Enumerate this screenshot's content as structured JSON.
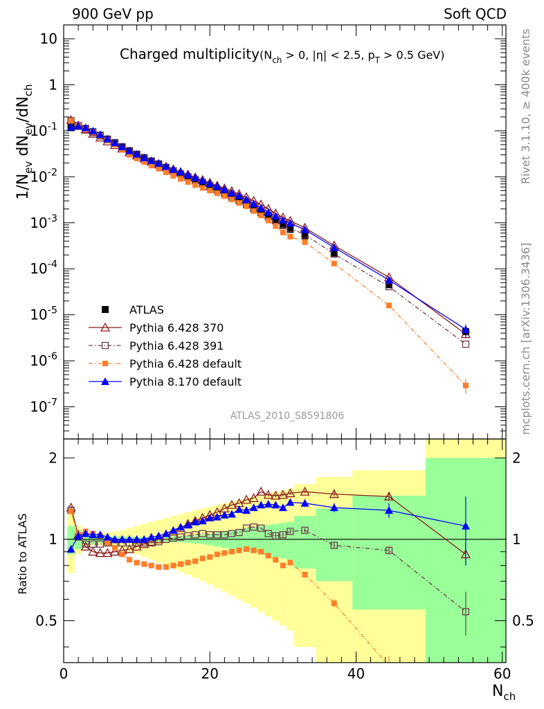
{
  "header": {
    "left": "900 GeV pp",
    "right": "Soft QCD"
  },
  "side_labels": {
    "rivet": "Rivet 3.1.10, ≥ 400k events",
    "mcplots": "mcplots.cern.ch [arXiv:1306.3436]"
  },
  "analysis_id": "ATLAS_2010_S8591806",
  "chart_data": [
    {
      "type": "scatter",
      "panel": "main",
      "title": "Charged multiplicity",
      "title_cuts": "(N_ch > 0, |η| < 2.5, p_T > 0.5 GeV)",
      "ylabel": "1/N_ev dN_ev/dN_ch",
      "xlabel": "N_ch",
      "xlim": [
        0,
        60.5
      ],
      "ylim": [
        2e-08,
        20
      ],
      "yscale": "log",
      "x_ticks": [
        0,
        20,
        40,
        60
      ],
      "y_ticks": [
        {
          "value": 1e-07,
          "label": "10^-7"
        },
        {
          "value": 1e-06,
          "label": "10^-6"
        },
        {
          "value": 1e-05,
          "label": "10^-5"
        },
        {
          "value": 0.0001,
          "label": "10^-4"
        },
        {
          "value": 0.001,
          "label": "10^-3"
        },
        {
          "value": 0.01,
          "label": "10^-2"
        },
        {
          "value": 0.1,
          "label": "10^-1"
        },
        {
          "value": 1,
          "label": "1"
        },
        {
          "value": 10,
          "label": "10"
        }
      ],
      "legend_placement": "bottom-left",
      "series": [
        {
          "name": "ATLAS",
          "color": "#000000",
          "marker": "square-filled",
          "line": "none",
          "x": [
            1,
            2,
            3,
            4,
            5,
            6,
            7,
            8,
            9,
            10,
            11,
            12,
            13,
            14,
            15,
            16,
            17,
            18,
            19,
            20,
            21,
            22,
            23,
            24,
            25,
            26,
            27,
            28,
            29,
            30,
            31,
            33,
            37,
            44.5,
            55
          ],
          "y": [
            0.13,
            0.125,
            0.112,
            0.095,
            0.08,
            0.066,
            0.055,
            0.045,
            0.037,
            0.031,
            0.026,
            0.022,
            0.019,
            0.016,
            0.0135,
            0.0115,
            0.0098,
            0.0083,
            0.0071,
            0.006,
            0.0051,
            0.0043,
            0.0036,
            0.003,
            0.0025,
            0.002,
            0.00165,
            0.00135,
            0.0011,
            0.00088,
            0.00072,
            0.00052,
            0.00022,
            4.5e-05,
            4.3e-06
          ]
        },
        {
          "name": "Pythia 6.428 370",
          "color": "#8b1a1a",
          "marker": "triangle-open",
          "line": "solid",
          "x": [
            1,
            2,
            3,
            4,
            5,
            6,
            7,
            8,
            9,
            10,
            11,
            12,
            13,
            14,
            15,
            16,
            17,
            18,
            19,
            20,
            21,
            22,
            23,
            24,
            25,
            26,
            27,
            28,
            29,
            30,
            31,
            33,
            37,
            44.5,
            55
          ],
          "y": [
            0.17,
            0.13,
            0.106,
            0.086,
            0.071,
            0.059,
            0.049,
            0.041,
            0.034,
            0.029,
            0.025,
            0.0215,
            0.019,
            0.0165,
            0.0145,
            0.0127,
            0.0112,
            0.0097,
            0.0085,
            0.0074,
            0.0064,
            0.0056,
            0.0049,
            0.0042,
            0.0036,
            0.003,
            0.0025,
            0.002,
            0.0016,
            0.0013,
            0.0011,
            0.00078,
            0.00032,
            6.5e-05,
            3.8e-06
          ]
        },
        {
          "name": "Pythia 6.428 391",
          "color": "#6b3a4a",
          "marker": "square-open",
          "line": "dashdot",
          "x": [
            1,
            2,
            3,
            4,
            5,
            6,
            7,
            8,
            9,
            10,
            11,
            12,
            13,
            14,
            15,
            16,
            17,
            18,
            19,
            20,
            21,
            22,
            23,
            24,
            25,
            26,
            27,
            28,
            29,
            30,
            31,
            33,
            37,
            44.5,
            55
          ],
          "y": [
            0.165,
            0.13,
            0.108,
            0.091,
            0.077,
            0.064,
            0.053,
            0.044,
            0.036,
            0.03,
            0.025,
            0.021,
            0.018,
            0.0155,
            0.0133,
            0.0115,
            0.01,
            0.0087,
            0.0075,
            0.0064,
            0.0054,
            0.0046,
            0.0039,
            0.0033,
            0.0028,
            0.0023,
            0.0018,
            0.00145,
            0.00115,
            0.00092,
            0.00076,
            0.00055,
            0.00021,
            4.1e-05,
            2.3e-06
          ]
        },
        {
          "name": "Pythia 6.428 default",
          "color": "#ff7f2a",
          "marker": "square-filled-small",
          "line": "dashdot",
          "x": [
            1,
            2,
            3,
            4,
            5,
            6,
            7,
            8,
            9,
            10,
            11,
            12,
            13,
            14,
            15,
            16,
            17,
            18,
            19,
            20,
            21,
            22,
            23,
            24,
            25,
            26,
            27,
            28,
            29,
            30,
            31,
            33,
            37,
            44.5,
            55
          ],
          "y": [
            0.165,
            0.13,
            0.107,
            0.092,
            0.078,
            0.062,
            0.05,
            0.039,
            0.03,
            0.025,
            0.021,
            0.0175,
            0.015,
            0.0125,
            0.0105,
            0.009,
            0.0077,
            0.0066,
            0.0057,
            0.005,
            0.0044,
            0.0038,
            0.0032,
            0.0027,
            0.0023,
            0.0018,
            0.00145,
            0.00112,
            0.00085,
            0.00062,
            0.0005,
            0.00038,
            0.00013,
            1.6e-05,
            2.9e-07
          ]
        },
        {
          "name": "Pythia 8.170 default",
          "color": "#0000ff",
          "marker": "triangle-filled",
          "line": "solid",
          "x": [
            1,
            2,
            3,
            4,
            5,
            6,
            7,
            8,
            9,
            10,
            11,
            12,
            13,
            14,
            15,
            16,
            17,
            18,
            19,
            20,
            21,
            22,
            23,
            24,
            25,
            26,
            27,
            28,
            29,
            30,
            31,
            33,
            37,
            44.5,
            55
          ],
          "y": [
            0.12,
            0.128,
            0.117,
            0.099,
            0.083,
            0.067,
            0.055,
            0.045,
            0.037,
            0.031,
            0.026,
            0.0225,
            0.0196,
            0.0168,
            0.0146,
            0.0128,
            0.0111,
            0.0097,
            0.0083,
            0.0072,
            0.0062,
            0.0053,
            0.0045,
            0.0039,
            0.0032,
            0.0026,
            0.0021,
            0.0017,
            0.0014,
            0.00115,
            0.00098,
            0.00071,
            0.00029,
            5.7e-05,
            4.8e-06
          ]
        }
      ]
    },
    {
      "type": "line",
      "panel": "ratio",
      "ylabel": "Ratio to ATLAS",
      "xlabel": "N_ch",
      "xlim": [
        0,
        60.5
      ],
      "ylim": [
        0.35,
        2.35
      ],
      "yscale": "log",
      "y_ticks": [
        {
          "value": 0.5,
          "label": "0.5"
        },
        {
          "value": 1,
          "label": "1"
        },
        {
          "value": 2,
          "label": "2"
        }
      ],
      "x_ticks": [
        0,
        20,
        40,
        60
      ],
      "uncertainty_bands": {
        "bin_edges": [
          0.5,
          1.5,
          2.5,
          3.5,
          4.5,
          5.5,
          6.5,
          7.5,
          8.5,
          9.5,
          10.5,
          11.5,
          12.5,
          13.5,
          14.5,
          15.5,
          16.5,
          17.5,
          18.5,
          19.5,
          20.5,
          21.5,
          22.5,
          23.5,
          24.5,
          25.5,
          26.5,
          27.5,
          28.5,
          29.5,
          30.5,
          31.5,
          34.5,
          39.5,
          49.5,
          60.5
        ],
        "green_half_width": [
          0.12,
          0.08,
          0.04,
          0.035,
          0.03,
          0.028,
          0.026,
          0.024,
          0.022,
          0.02,
          0.02,
          0.02,
          0.02,
          0.022,
          0.024,
          0.026,
          0.03,
          0.034,
          0.04,
          0.05,
          0.06,
          0.07,
          0.08,
          0.09,
          0.1,
          0.11,
          0.12,
          0.13,
          0.14,
          0.15,
          0.16,
          0.22,
          0.3,
          0.45,
          1.0
        ],
        "yellow_half_width": [
          0.25,
          0.12,
          0.06,
          0.05,
          0.05,
          0.06,
          0.07,
          0.08,
          0.1,
          0.12,
          0.14,
          0.16,
          0.18,
          0.2,
          0.22,
          0.24,
          0.26,
          0.28,
          0.3,
          0.32,
          0.34,
          0.36,
          0.38,
          0.4,
          0.42,
          0.44,
          0.46,
          0.48,
          0.5,
          0.52,
          0.54,
          0.6,
          0.7,
          0.8,
          1.4
        ],
        "green_color": "#99ff99",
        "yellow_color": "#ffff99"
      },
      "series": [
        {
          "name": "Pythia 6.428 370",
          "color": "#8b1a1a",
          "marker": "triangle-open",
          "line": "solid",
          "x": [
            1,
            2,
            3,
            4,
            5,
            6,
            7,
            8,
            9,
            10,
            11,
            12,
            13,
            14,
            15,
            16,
            17,
            18,
            19,
            20,
            21,
            22,
            23,
            24,
            25,
            26,
            27,
            28,
            29,
            30,
            31,
            33,
            37,
            44.5,
            55
          ],
          "y": [
            1.31,
            1.04,
            0.94,
            0.9,
            0.89,
            0.89,
            0.9,
            0.91,
            0.92,
            0.94,
            0.96,
            0.98,
            1.0,
            1.03,
            1.07,
            1.1,
            1.14,
            1.17,
            1.2,
            1.23,
            1.26,
            1.3,
            1.34,
            1.36,
            1.4,
            1.42,
            1.5,
            1.46,
            1.45,
            1.46,
            1.48,
            1.5,
            1.47,
            1.44,
            0.88
          ],
          "err": [
            0.02,
            0.02,
            0.01,
            0.01,
            0.01,
            0.01,
            0.01,
            0.01,
            0.01,
            0.01,
            0.01,
            0.01,
            0.01,
            0.01,
            0.01,
            0.01,
            0.01,
            0.01,
            0.01,
            0.01,
            0.01,
            0.01,
            0.01,
            0.01,
            0.01,
            0.01,
            0.01,
            0.02,
            0.02,
            0.02,
            0.02,
            0.02,
            0.03,
            0.04,
            0.07
          ]
        },
        {
          "name": "Pythia 6.428 391",
          "color": "#6b3a4a",
          "marker": "square-open",
          "line": "dashdot",
          "x": [
            1,
            2,
            3,
            4,
            5,
            6,
            7,
            8,
            9,
            10,
            11,
            12,
            13,
            14,
            15,
            16,
            17,
            18,
            19,
            20,
            21,
            22,
            23,
            24,
            25,
            26,
            27,
            28,
            29,
            30,
            31,
            33,
            37,
            44.5,
            55
          ],
          "y": [
            1.28,
            1.02,
            0.96,
            0.96,
            0.96,
            0.97,
            0.97,
            0.97,
            0.97,
            0.97,
            0.97,
            0.97,
            0.98,
            1.0,
            1.01,
            1.02,
            1.03,
            1.04,
            1.05,
            1.04,
            1.04,
            1.04,
            1.05,
            1.06,
            1.1,
            1.11,
            1.1,
            1.05,
            1.03,
            1.04,
            1.07,
            1.08,
            0.95,
            0.91,
            0.54
          ],
          "err": [
            0.02,
            0.02,
            0.01,
            0.01,
            0.01,
            0.01,
            0.01,
            0.01,
            0.01,
            0.01,
            0.01,
            0.01,
            0.01,
            0.01,
            0.01,
            0.01,
            0.01,
            0.01,
            0.01,
            0.01,
            0.01,
            0.01,
            0.01,
            0.01,
            0.01,
            0.01,
            0.01,
            0.01,
            0.02,
            0.02,
            0.02,
            0.02,
            0.02,
            0.03,
            0.1
          ]
        },
        {
          "name": "Pythia 6.428 default",
          "color": "#ff7f2a",
          "marker": "square-filled-small",
          "line": "dashdot",
          "x": [
            1,
            2,
            3,
            4,
            5,
            6,
            7,
            8,
            9,
            10,
            11,
            12,
            13,
            14,
            15,
            16,
            17,
            18,
            19,
            20,
            21,
            22,
            23,
            24,
            25,
            26,
            27,
            28,
            29,
            30,
            31,
            33,
            37,
            44.5
          ],
          "y": [
            1.27,
            1.04,
            1.07,
            1.05,
            1.03,
            0.97,
            0.93,
            0.88,
            0.84,
            0.82,
            0.81,
            0.8,
            0.79,
            0.79,
            0.8,
            0.81,
            0.82,
            0.83,
            0.85,
            0.86,
            0.88,
            0.89,
            0.9,
            0.91,
            0.92,
            0.91,
            0.9,
            0.87,
            0.84,
            0.8,
            0.82,
            0.74,
            0.58,
            0.34
          ],
          "err": [
            0.02,
            0.02,
            0.01,
            0.01,
            0.01,
            0.01,
            0.01,
            0.01,
            0.01,
            0.01,
            0.01,
            0.01,
            0.01,
            0.01,
            0.01,
            0.01,
            0.01,
            0.01,
            0.01,
            0.01,
            0.01,
            0.01,
            0.01,
            0.01,
            0.01,
            0.01,
            0.01,
            0.01,
            0.01,
            0.01,
            0.01,
            0.01,
            0.02,
            0.03
          ]
        },
        {
          "name": "Pythia 8.170 default",
          "color": "#0000ff",
          "marker": "triangle-filled",
          "line": "solid",
          "x": [
            1,
            2,
            3,
            4,
            5,
            6,
            7,
            8,
            9,
            10,
            11,
            12,
            13,
            14,
            15,
            16,
            17,
            18,
            19,
            20,
            21,
            22,
            23,
            24,
            25,
            26,
            27,
            28,
            29,
            30,
            31,
            33,
            37,
            44.5,
            55
          ],
          "y": [
            0.92,
            1.03,
            1.05,
            1.04,
            1.04,
            1.02,
            1.0,
            1.0,
            1.0,
            1.0,
            1.0,
            1.02,
            1.03,
            1.05,
            1.08,
            1.11,
            1.13,
            1.16,
            1.17,
            1.2,
            1.21,
            1.23,
            1.24,
            1.29,
            1.28,
            1.31,
            1.34,
            1.35,
            1.34,
            1.31,
            1.37,
            1.36,
            1.31,
            1.28,
            1.12
          ],
          "err": [
            0.03,
            0.02,
            0.01,
            0.01,
            0.01,
            0.01,
            0.01,
            0.01,
            0.01,
            0.01,
            0.01,
            0.01,
            0.01,
            0.01,
            0.01,
            0.01,
            0.01,
            0.01,
            0.01,
            0.01,
            0.02,
            0.02,
            0.02,
            0.02,
            0.02,
            0.02,
            0.03,
            0.03,
            0.03,
            0.03,
            0.04,
            0.04,
            0.05,
            0.08,
            0.32
          ]
        }
      ]
    }
  ]
}
